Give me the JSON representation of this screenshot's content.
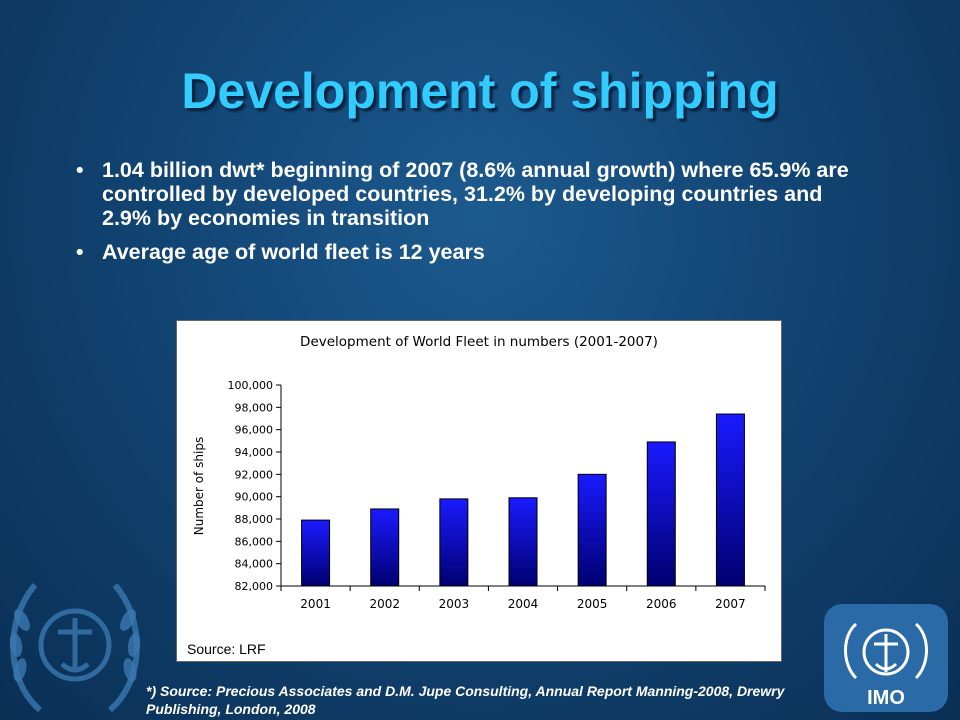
{
  "slide": {
    "title": "Development of shipping",
    "bullets": [
      "1.04 billion dwt* beginning of 2007 (8.6% annual growth) where 65.9% are controlled by developed countries, 31.2% by developing countries and 2.9% by economies in transition",
      "Average age of world fleet is 12 years"
    ],
    "bullet_glyph": "•",
    "footnote": "*) Source: Precious Associates and D.M. Jupe Consulting, Annual Report Manning-2008, Drewry Publishing, London, 2008",
    "logo_text": "IMO",
    "colors": {
      "title": "#33ccff",
      "background": "#124574",
      "bar_top": "#0000ff",
      "bar_bottom": "#000066"
    },
    "icons": [
      "un-wreath-emblem-icon",
      "imo-logo-icon"
    ]
  },
  "chart_data": {
    "type": "bar",
    "title": "Development of World Fleet in numbers (2001-2007)",
    "xlabel": "",
    "ylabel": "Number of ships",
    "categories": [
      "2001",
      "2002",
      "2003",
      "2004",
      "2005",
      "2006",
      "2007"
    ],
    "values": [
      87900,
      88900,
      89800,
      89900,
      92000,
      94900,
      97400
    ],
    "ylim": [
      82000,
      100000
    ],
    "yticks": [
      "82,000",
      "84,000",
      "86,000",
      "88,000",
      "90,000",
      "92,000",
      "94,000",
      "96,000",
      "98,000",
      "100,000"
    ],
    "source_label": "Source: LRF",
    "grid": false,
    "legend": "none"
  }
}
